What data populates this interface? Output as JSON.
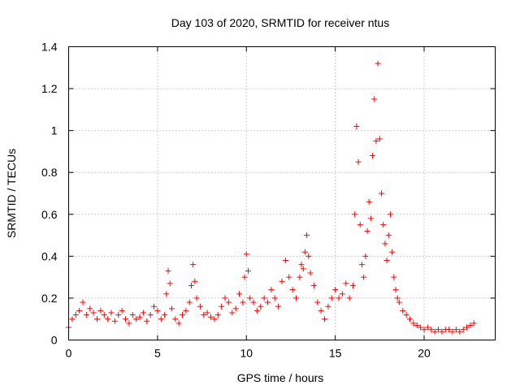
{
  "chart_data": {
    "type": "scatter",
    "title": "Day 103 of 2020, SRMTID for receiver ntus",
    "xlabel": "GPS time / hours",
    "ylabel": "SRMTID / TECUs",
    "xlim": [
      0,
      24
    ],
    "ylim": [
      0,
      1.4
    ],
    "xticks": [
      0,
      5,
      10,
      15,
      20
    ],
    "xtick_labels": [
      "0",
      "5",
      "10",
      "15",
      "20"
    ],
    "yticks": [
      0,
      0.2,
      0.4,
      0.6,
      0.8,
      1.0,
      1.2,
      1.4
    ],
    "ytick_labels": [
      "0",
      "0.2",
      "0.4",
      "0.6",
      "0.8",
      "1",
      "1.2",
      "1.4"
    ],
    "grid": true,
    "marker": "plus",
    "color": "#ff0000",
    "series": [
      {
        "name": "SRMTID",
        "x": [
          0.0,
          0.2,
          0.4,
          0.6,
          0.8,
          1.0,
          1.2,
          1.4,
          1.6,
          1.8,
          2.0,
          2.2,
          2.4,
          2.6,
          2.8,
          3.0,
          3.2,
          3.4,
          3.6,
          3.8,
          4.0,
          4.2,
          4.4,
          4.6,
          4.8,
          5.0,
          5.2,
          5.4,
          5.5,
          5.6,
          5.7,
          5.8,
          6.0,
          6.2,
          6.4,
          6.6,
          6.8,
          6.9,
          7.0,
          7.1,
          7.2,
          7.4,
          7.6,
          7.8,
          8.0,
          8.2,
          8.4,
          8.6,
          8.8,
          9.0,
          9.2,
          9.4,
          9.6,
          9.8,
          9.9,
          10.0,
          10.1,
          10.2,
          10.4,
          10.6,
          10.8,
          11.0,
          11.2,
          11.4,
          11.6,
          11.8,
          12.0,
          12.2,
          12.4,
          12.6,
          12.8,
          13.0,
          13.1,
          13.2,
          13.3,
          13.4,
          13.5,
          13.6,
          13.8,
          14.0,
          14.2,
          14.4,
          14.6,
          14.8,
          15.0,
          15.2,
          15.4,
          15.6,
          15.8,
          16.0,
          16.1,
          16.2,
          16.3,
          16.4,
          16.5,
          16.6,
          16.7,
          16.8,
          16.9,
          17.0,
          17.1,
          17.2,
          17.3,
          17.4,
          17.5,
          17.6,
          17.7,
          17.8,
          17.9,
          18.0,
          18.1,
          18.2,
          18.3,
          18.4,
          18.5,
          18.6,
          18.8,
          19.0,
          19.2,
          19.4,
          19.6,
          19.8,
          20.0,
          20.2,
          20.4,
          20.6,
          20.8,
          21.0,
          21.2,
          21.4,
          21.6,
          21.8,
          22.0,
          22.2,
          22.4,
          22.6,
          22.8
        ],
        "y": [
          0.06,
          0.1,
          0.12,
          0.14,
          0.18,
          0.12,
          0.15,
          0.13,
          0.1,
          0.14,
          0.12,
          0.1,
          0.13,
          0.09,
          0.12,
          0.14,
          0.1,
          0.08,
          0.12,
          0.1,
          0.11,
          0.13,
          0.09,
          0.12,
          0.16,
          0.14,
          0.1,
          0.12,
          0.22,
          0.33,
          0.27,
          0.15,
          0.1,
          0.08,
          0.12,
          0.14,
          0.18,
          0.26,
          0.36,
          0.28,
          0.2,
          0.16,
          0.12,
          0.13,
          0.11,
          0.1,
          0.12,
          0.16,
          0.2,
          0.18,
          0.13,
          0.15,
          0.22,
          0.18,
          0.3,
          0.41,
          0.33,
          0.2,
          0.18,
          0.14,
          0.16,
          0.2,
          0.18,
          0.24,
          0.2,
          0.16,
          0.28,
          0.38,
          0.3,
          0.24,
          0.2,
          0.3,
          0.36,
          0.34,
          0.42,
          0.5,
          0.4,
          0.32,
          0.26,
          0.18,
          0.14,
          0.1,
          0.16,
          0.2,
          0.24,
          0.2,
          0.22,
          0.27,
          0.2,
          0.26,
          0.6,
          1.02,
          0.85,
          0.55,
          0.36,
          0.3,
          0.4,
          0.52,
          0.66,
          0.58,
          0.88,
          1.15,
          0.95,
          1.32,
          0.96,
          0.7,
          0.55,
          0.46,
          0.38,
          0.5,
          0.6,
          0.42,
          0.3,
          0.24,
          0.2,
          0.18,
          0.14,
          0.12,
          0.1,
          0.08,
          0.07,
          0.06,
          0.05,
          0.06,
          0.05,
          0.04,
          0.05,
          0.04,
          0.05,
          0.05,
          0.04,
          0.05,
          0.04,
          0.05,
          0.06,
          0.07,
          0.08
        ]
      }
    ]
  }
}
